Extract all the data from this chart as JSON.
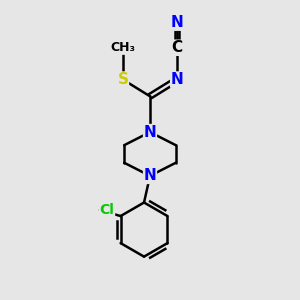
{
  "bg_color": "#e6e6e6",
  "bond_color": "#000000",
  "N_color": "#0000ff",
  "S_color": "#cccc00",
  "Cl_color": "#00cc00",
  "line_width": 1.8,
  "font_size": 10,
  "figsize": [
    3.0,
    3.0
  ],
  "dpi": 100,
  "xlim": [
    -2.5,
    2.5
  ],
  "ylim": [
    -4.2,
    3.2
  ]
}
